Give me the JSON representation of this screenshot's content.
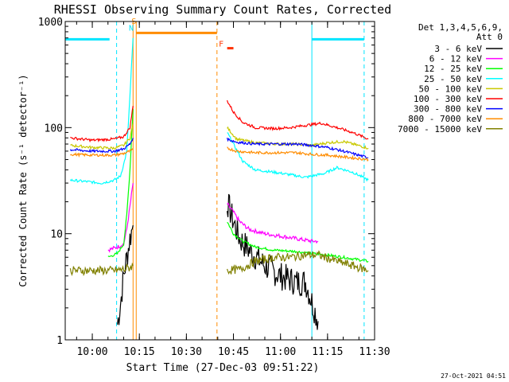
{
  "chart_data": {
    "type": "line",
    "title": "RHESSI Observing Summary Count Rates, Corrected",
    "xlabel": "Start Time (27-Dec-03 09:51:22)",
    "ylabel": "Corrected Count Rate (s⁻¹ detector⁻¹)",
    "yscale": "log",
    "ylim": [
      1,
      1000
    ],
    "xlim": [
      "09:51:22",
      "11:30:00"
    ],
    "x_ticks": [
      "10:00",
      "10:15",
      "10:30",
      "10:45",
      "11:00",
      "11:15",
      "11:30"
    ],
    "y_ticks": [
      "1",
      "10",
      "100",
      "1000"
    ],
    "grid": false,
    "legend_title": [
      "Det 1,3,4,5,6,9,",
      "Att 0"
    ],
    "legend_position": "right-outside",
    "footer_date": "27-Oct-2021 04:51",
    "annotations": [
      {
        "text": "S",
        "color": "#ff8c00"
      },
      {
        "text": "N",
        "color": "#00e5ff"
      },
      {
        "text": "F",
        "color": "#ff3300"
      }
    ],
    "series": [
      {
        "name": "3 - 6 keV",
        "color": "#000000",
        "x": [
          "10:08",
          "10:09",
          "10:10",
          "10:11",
          "10:12",
          "10:13",
          "10:43",
          "10:45",
          "10:47",
          "10:50",
          "10:55",
          "11:00",
          "11:05",
          "11:08",
          "11:12"
        ],
        "y": [
          1.4,
          2.2,
          4,
          6,
          9,
          12,
          20,
          13,
          9,
          7,
          5,
          4,
          3.5,
          3.5,
          1.5
        ]
      },
      {
        "name": "6 - 12 keV",
        "color": "#ff00ff",
        "x": [
          "10:05",
          "10:08",
          "10:10",
          "10:11",
          "10:12",
          "10:13",
          "10:43",
          "10:45",
          "10:47",
          "10:50",
          "10:55",
          "11:00",
          "11:05",
          "11:10",
          "11:12"
        ],
        "y": [
          7,
          7.5,
          8,
          11,
          18,
          30,
          19,
          16,
          13,
          11,
          10,
          9.5,
          9,
          8.5,
          8.5
        ]
      },
      {
        "name": "12 - 25 keV",
        "color": "#00ff00",
        "x": [
          "10:05",
          "10:08",
          "10:10",
          "10:11",
          "10:12",
          "10:13",
          "10:43",
          "10:45",
          "10:48",
          "10:52",
          "10:58",
          "11:05",
          "11:10",
          "11:15",
          "11:20",
          "11:28"
        ],
        "y": [
          6,
          6.5,
          8,
          15,
          40,
          150,
          13,
          10,
          8.5,
          7.5,
          7,
          6.8,
          6.5,
          6.3,
          6,
          5.5
        ]
      },
      {
        "name": "25 - 50 keV",
        "color": "#00ffff",
        "x": [
          "09:53",
          "09:58",
          "10:03",
          "10:07",
          "10:09",
          "10:10",
          "10:11",
          "10:12",
          "10:13",
          "10:43",
          "10:45",
          "10:48",
          "10:52",
          "10:58",
          "11:03",
          "11:08",
          "11:14",
          "11:18",
          "11:23",
          "11:28"
        ],
        "y": [
          32,
          31,
          30,
          32,
          35,
          45,
          60,
          200,
          700,
          90,
          70,
          48,
          40,
          38,
          36,
          34,
          37,
          42,
          38,
          32
        ]
      },
      {
        "name": "50 - 100 keV",
        "color": "#c8c800",
        "x": [
          "09:53",
          "10:00",
          "10:07",
          "10:10",
          "10:12",
          "10:13",
          "10:43",
          "10:46",
          "10:52",
          "11:00",
          "11:05",
          "11:10",
          "11:15",
          "11:20",
          "11:28"
        ],
        "y": [
          68,
          65,
          64,
          68,
          80,
          110,
          100,
          78,
          72,
          70,
          70,
          68,
          72,
          74,
          64
        ]
      },
      {
        "name": "100 - 300 keV",
        "color": "#ff0000",
        "x": [
          "09:53",
          "10:00",
          "10:07",
          "10:10",
          "10:12",
          "10:13",
          "10:43",
          "10:45",
          "10:48",
          "10:52",
          "10:58",
          "11:03",
          "11:08",
          "11:13",
          "11:18",
          "11:23",
          "11:28"
        ],
        "y": [
          80,
          76,
          78,
          82,
          100,
          160,
          180,
          140,
          112,
          100,
          98,
          100,
          105,
          110,
          100,
          90,
          78
        ]
      },
      {
        "name": "300 - 800 keV",
        "color": "#0000ff",
        "x": [
          "09:53",
          "10:00",
          "10:07",
          "10:10",
          "10:12",
          "10:13",
          "10:43",
          "10:46",
          "10:52",
          "11:00",
          "11:05",
          "11:10",
          "11:15",
          "11:20",
          "11:28"
        ],
        "y": [
          62,
          60,
          60,
          63,
          70,
          80,
          78,
          73,
          70,
          70,
          70,
          68,
          65,
          60,
          52
        ]
      },
      {
        "name": "800 - 7000 keV",
        "color": "#ff8c00",
        "x": [
          "09:53",
          "10:00",
          "10:07",
          "10:10",
          "10:12",
          "10:13",
          "10:43",
          "10:46",
          "10:52",
          "11:00",
          "11:05",
          "11:10",
          "11:15",
          "11:20",
          "11:28"
        ],
        "y": [
          56,
          55,
          55,
          57,
          60,
          62,
          64,
          60,
          58,
          58,
          58,
          56,
          55,
          53,
          50
        ]
      },
      {
        "name": "7000 - 15000 keV",
        "color": "#808000",
        "x": [
          "09:53",
          "10:00",
          "10:07",
          "10:10",
          "10:12",
          "10:13",
          "10:43",
          "10:47",
          "10:52",
          "10:58",
          "11:03",
          "11:08",
          "11:12",
          "11:18",
          "11:23",
          "11:28"
        ],
        "y": [
          4.5,
          4.5,
          4.5,
          4.6,
          4.8,
          5,
          4.5,
          4.6,
          5.5,
          6,
          6,
          6.3,
          6.3,
          5.5,
          5,
          4.5
        ]
      }
    ],
    "overlays": {
      "vertical_lines": [
        {
          "x": "10:07:45",
          "color": "#00e5ff",
          "style": "dashed"
        },
        {
          "x": "10:13:00",
          "color": "#ff8c00",
          "style": "solid"
        },
        {
          "x": "10:14:00",
          "color": "#ff8c00",
          "style": "solid"
        },
        {
          "x": "10:39:45",
          "color": "#ff8c00",
          "style": "dashed"
        },
        {
          "x": "11:10:00",
          "color": "#00e5ff",
          "style": "solid"
        },
        {
          "x": "11:26:40",
          "color": "#00e5ff",
          "style": "dashed"
        }
      ],
      "bars": [
        {
          "x0": "09:51:22",
          "x1": "10:05:30",
          "y": 680,
          "color": "#00e5ff"
        },
        {
          "x0": "11:10:00",
          "x1": "11:26:40",
          "y": 680,
          "color": "#00e5ff"
        },
        {
          "x0": "10:14:00",
          "x1": "10:39:45",
          "y": 780,
          "color": "#ff8c00"
        },
        {
          "x0": "10:43:00",
          "x1": "10:45:00",
          "y": 560,
          "color": "#ff3300"
        }
      ]
    }
  }
}
